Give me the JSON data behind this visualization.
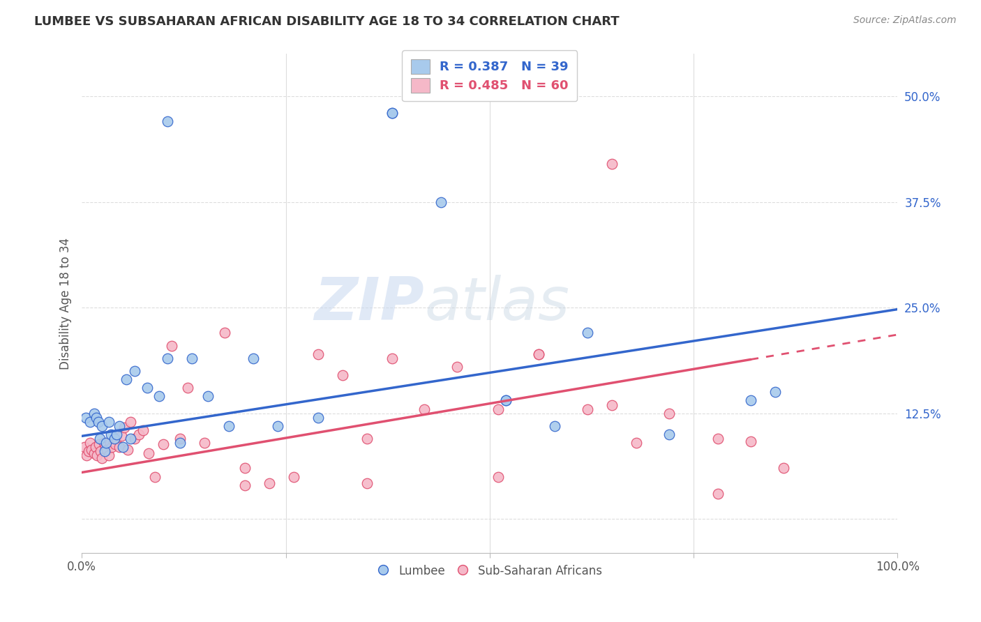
{
  "title": "LUMBEE VS SUBSAHARAN AFRICAN DISABILITY AGE 18 TO 34 CORRELATION CHART",
  "source": "Source: ZipAtlas.com",
  "xlabel": "",
  "ylabel": "Disability Age 18 to 34",
  "xlim": [
    0.0,
    1.0
  ],
  "ylim": [
    -0.04,
    0.55
  ],
  "xticks": [
    0.0,
    0.25,
    0.5,
    0.75,
    1.0
  ],
  "xticklabels": [
    "0.0%",
    "",
    "",
    "",
    "100.0%"
  ],
  "yticks": [
    0.0,
    0.125,
    0.25,
    0.375,
    0.5
  ],
  "yticklabels": [
    "",
    "12.5%",
    "25.0%",
    "37.5%",
    "50.0%"
  ],
  "lumbee_color": "#A8CAEC",
  "subsaharan_color": "#F5B8C8",
  "line_lumbee_color": "#3366CC",
  "line_subsaharan_color": "#E05070",
  "R_lumbee": 0.387,
  "N_lumbee": 39,
  "R_subsaharan": 0.485,
  "N_subsaharan": 60,
  "legend_lumbee": "Lumbee",
  "legend_subsaharan": "Sub-Saharan Africans",
  "lumbee_x": [
    0.005,
    0.01,
    0.015,
    0.018,
    0.02,
    0.022,
    0.025,
    0.028,
    0.03,
    0.033,
    0.036,
    0.04,
    0.043,
    0.046,
    0.05,
    0.055,
    0.06,
    0.065,
    0.08,
    0.095,
    0.105,
    0.12,
    0.135,
    0.155,
    0.18,
    0.21,
    0.24,
    0.29,
    0.38,
    0.44,
    0.52,
    0.58,
    0.62,
    0.72,
    0.82,
    0.85,
    0.38,
    0.52,
    0.105
  ],
  "lumbee_y": [
    0.12,
    0.115,
    0.125,
    0.12,
    0.115,
    0.095,
    0.11,
    0.08,
    0.09,
    0.115,
    0.1,
    0.095,
    0.1,
    0.11,
    0.085,
    0.165,
    0.095,
    0.175,
    0.155,
    0.145,
    0.19,
    0.09,
    0.19,
    0.145,
    0.11,
    0.19,
    0.11,
    0.12,
    0.48,
    0.375,
    0.14,
    0.11,
    0.22,
    0.1,
    0.14,
    0.15,
    0.48,
    0.14,
    0.47
  ],
  "subsaharan_x": [
    0.003,
    0.006,
    0.008,
    0.01,
    0.012,
    0.015,
    0.017,
    0.019,
    0.021,
    0.023,
    0.025,
    0.027,
    0.029,
    0.031,
    0.033,
    0.035,
    0.037,
    0.039,
    0.041,
    0.043,
    0.046,
    0.049,
    0.052,
    0.056,
    0.06,
    0.065,
    0.07,
    0.075,
    0.082,
    0.09,
    0.1,
    0.11,
    0.12,
    0.13,
    0.15,
    0.175,
    0.2,
    0.23,
    0.26,
    0.29,
    0.32,
    0.35,
    0.38,
    0.42,
    0.46,
    0.51,
    0.56,
    0.62,
    0.65,
    0.68,
    0.72,
    0.78,
    0.82,
    0.86,
    0.2,
    0.35,
    0.51,
    0.56,
    0.65,
    0.78
  ],
  "subsaharan_y": [
    0.085,
    0.075,
    0.08,
    0.09,
    0.082,
    0.078,
    0.085,
    0.075,
    0.088,
    0.08,
    0.072,
    0.09,
    0.085,
    0.082,
    0.075,
    0.09,
    0.085,
    0.092,
    0.088,
    0.095,
    0.085,
    0.098,
    0.108,
    0.082,
    0.115,
    0.095,
    0.1,
    0.105,
    0.078,
    0.05,
    0.088,
    0.205,
    0.095,
    0.155,
    0.09,
    0.22,
    0.06,
    0.042,
    0.05,
    0.195,
    0.17,
    0.095,
    0.19,
    0.13,
    0.18,
    0.13,
    0.195,
    0.13,
    0.135,
    0.09,
    0.125,
    0.03,
    0.092,
    0.06,
    0.04,
    0.042,
    0.05,
    0.195,
    0.42,
    0.095
  ],
  "lumbee_line_x0": 0.0,
  "lumbee_line_y0": 0.098,
  "lumbee_line_x1": 1.0,
  "lumbee_line_y1": 0.248,
  "subsaharan_line_x0": 0.0,
  "subsaharan_line_y0": 0.055,
  "subsaharan_line_x1": 1.0,
  "subsaharan_line_y1": 0.218,
  "watermark_zip": "ZIP",
  "watermark_atlas": "atlas",
  "background_color": "#FFFFFF",
  "grid_color": "#DDDDDD"
}
